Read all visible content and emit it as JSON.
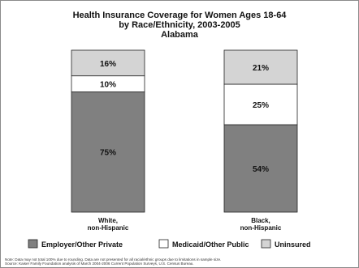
{
  "chart_data": {
    "type": "bar",
    "stacked": true,
    "title": "Health Insurance Coverage for Women Ages 18-64",
    "subtitle": "by Race/Ethnicity, 2003-2005",
    "region": "Alabama",
    "categories": [
      {
        "line1": "White,",
        "line2": "non-Hispanic"
      },
      {
        "line1": "Black,",
        "line2": "non-Hispanic"
      }
    ],
    "series": [
      {
        "name": "Employer/Other Private",
        "values": [
          75,
          54
        ],
        "labels": [
          "75%",
          "54%"
        ],
        "color": "#808080"
      },
      {
        "name": "Medicaid/Other Public",
        "values": [
          10,
          25
        ],
        "labels": [
          "10%",
          "25%"
        ],
        "color": "#ffffff"
      },
      {
        "name": "Uninsured",
        "values": [
          16,
          21
        ],
        "labels": [
          "16%",
          "21%"
        ],
        "color": "#d4d4d4"
      }
    ],
    "ylim": [
      0,
      100
    ],
    "grid": false,
    "legend_position": "bottom"
  },
  "notes": {
    "line1": "Note: Data may not total 100% due to rounding. Data are not presented for all racial/ethnic groups due to limitations in sample size.",
    "line2": "Source: Kaiser Family Foundation analysis of March 2004-2006 Current Population Surveys, U.S. Census Bureau."
  }
}
